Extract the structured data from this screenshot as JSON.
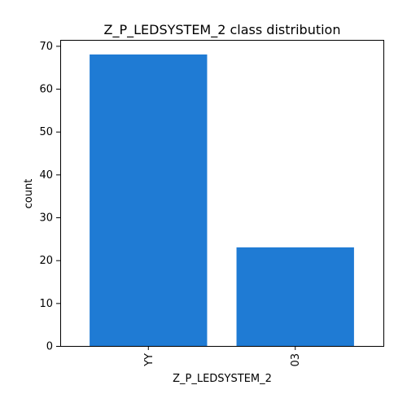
{
  "chart_data": {
    "type": "bar",
    "title": "Z_P_LEDSYSTEM_2 class distribution",
    "xlabel": "Z_P_LEDSYSTEM_2",
    "ylabel": "count",
    "categories": [
      "YY",
      "03"
    ],
    "values": [
      68,
      23
    ],
    "ylim": [
      0,
      71.4
    ],
    "yticks": [
      0,
      10,
      20,
      30,
      40,
      50,
      60,
      70
    ],
    "bar_color": "#1f7bd4",
    "grid": false,
    "legend": "none"
  }
}
